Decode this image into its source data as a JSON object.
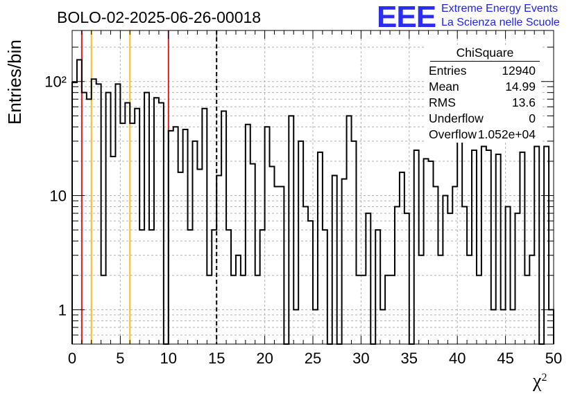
{
  "title": "BOLO-02-2025-06-26-00018",
  "logo": {
    "mark": "EEE",
    "line1": "Extreme Energy Events",
    "line2": "La Scienza nelle Scuole",
    "color": "#2a2df2"
  },
  "stats_box": {
    "title": "ChiSquare",
    "rows": [
      {
        "label": "Entries",
        "value": "12940"
      },
      {
        "label": "Mean",
        "value": "14.99"
      },
      {
        "label": "RMS",
        "value": "13.6"
      },
      {
        "label": "Underflow",
        "value": "0"
      },
      {
        "label": "Overflow",
        "value": "1.052e+04"
      }
    ]
  },
  "chart_data": {
    "type": "histogram",
    "title": "BOLO-02-2025-06-26-00018",
    "xlabel": "χ²",
    "ylabel": "Entries/bin",
    "xlim": [
      0,
      50
    ],
    "ylim": [
      0.5,
      280
    ],
    "yscale": "log",
    "bin_width": 0.5,
    "x_ticks": [
      "0",
      "5",
      "10",
      "15",
      "20",
      "25",
      "30",
      "35",
      "40",
      "45",
      "50"
    ],
    "y_ticks": [
      {
        "value": 1,
        "label": "1"
      },
      {
        "value": 10,
        "label": "10"
      },
      {
        "value": 100,
        "label": "10²"
      }
    ],
    "grid": true,
    "bin_contents": [
      98,
      155,
      80,
      70,
      105,
      95,
      2,
      80,
      22,
      95,
      43,
      65,
      43,
      58,
      5,
      80,
      5,
      72,
      65,
      0.5,
      37,
      40,
      16,
      38,
      5,
      30,
      17,
      58,
      2,
      5,
      15,
      55,
      5,
      2,
      3,
      2,
      42,
      19,
      2,
      5,
      40,
      18,
      12,
      12,
      0.5,
      50,
      1,
      30,
      8,
      6,
      1,
      24,
      5,
      0.5,
      15,
      0.5,
      14,
      50,
      30,
      2,
      2,
      7,
      0.5,
      5,
      1,
      2,
      2,
      8,
      16,
      7,
      0.5,
      25,
      3,
      21,
      20,
      12,
      3,
      10,
      7,
      12,
      40,
      8,
      3,
      25,
      2,
      27,
      25,
      1,
      23,
      1,
      8,
      1,
      7,
      24,
      2,
      3,
      27,
      0.5,
      27,
      1
    ],
    "vlines": [
      {
        "x": 1,
        "color": "#e01b1b",
        "style": "solid"
      },
      {
        "x": 2,
        "color": "#f2c21b",
        "style": "solid"
      },
      {
        "x": 6,
        "color": "#f2c21b",
        "style": "solid"
      },
      {
        "x": 10,
        "color": "#e01b1b",
        "style": "solid"
      },
      {
        "x": 15,
        "color": "#000000",
        "style": "dashed"
      }
    ]
  }
}
